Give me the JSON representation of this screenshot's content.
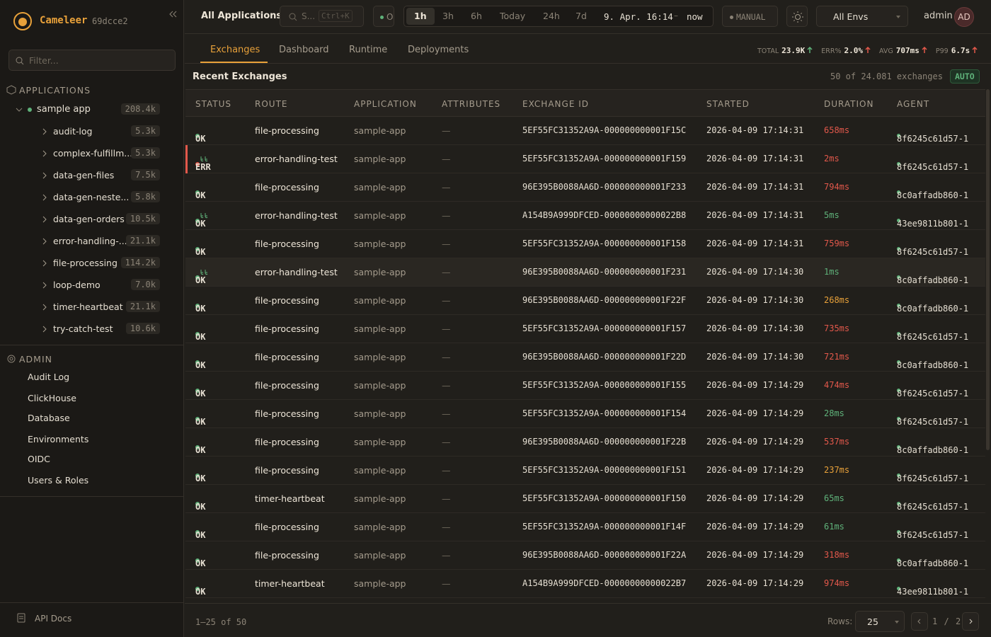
{
  "sidebar": {
    "brand": "Cameleer",
    "version": "69dcce2",
    "filter_placeholder": "Filter...",
    "applications_heading": "APPLICATIONS",
    "app": {
      "name": "sample app",
      "count": "208.4k"
    },
    "routes": [
      {
        "name": "audit-log",
        "count": "5.3k"
      },
      {
        "name": "complex-fulfillm...",
        "count": "5.3k"
      },
      {
        "name": "data-gen-files",
        "count": "7.5k"
      },
      {
        "name": "data-gen-neste...",
        "count": "5.8k"
      },
      {
        "name": "data-gen-orders",
        "count": "10.5k"
      },
      {
        "name": "error-handling-...",
        "count": "21.1k"
      },
      {
        "name": "file-processing",
        "count": "114.2k"
      },
      {
        "name": "loop-demo",
        "count": "7.0k"
      },
      {
        "name": "timer-heartbeat",
        "count": "21.1k"
      },
      {
        "name": "try-catch-test",
        "count": "10.6k"
      }
    ],
    "admin_heading": "ADMIN",
    "admin_items": [
      "Audit Log",
      "ClickHouse",
      "Database",
      "Environments",
      "OIDC",
      "Users & Roles"
    ],
    "api_docs": "API Docs"
  },
  "topbar": {
    "title": "All Applications",
    "search": "S...",
    "shortcut": "Ctrl+K",
    "status": "O",
    "ranges": [
      "1h",
      "3h",
      "6h",
      "Today",
      "24h",
      "7d"
    ],
    "range_start": "9. Apr. 16:14",
    "range_sep": "–",
    "range_end": "now",
    "manual": "MANUAL",
    "env": "All Envs",
    "user": "admin",
    "avatar": "AD"
  },
  "tabs": [
    "Exchanges",
    "Dashboard",
    "Runtime",
    "Deployments"
  ],
  "stats": [
    {
      "label": "TOTAL",
      "value": "23.9K",
      "color": "#5fb27a"
    },
    {
      "label": "ERR%",
      "value": "2.0%",
      "color": "#e2584b"
    },
    {
      "label": "AVG",
      "value": "707ms",
      "color": "#e2584b"
    },
    {
      "label": "P99",
      "value": "6.7s",
      "color": "#e2584b"
    }
  ],
  "table": {
    "title": "Recent Exchanges",
    "count_text": "50 of 24.081 exchanges",
    "auto": "AUTO",
    "columns": [
      "STATUS",
      "ROUTE",
      "APPLICATION",
      "ATTRIBUTES",
      "EXCHANGE ID",
      "STARTED",
      "DURATION",
      "AGENT"
    ],
    "rows": [
      {
        "status": "OK",
        "route": "file-processing",
        "app": "sample-app",
        "attrs": "—",
        "id": "5EF55FC31352A9A-000000000001F15C",
        "started": "2026-04-09 17:14:31",
        "duration": "658ms",
        "agent": "8f6245c61d57-1"
      },
      {
        "status": "ERR",
        "replay": true,
        "route": "error-handling-test",
        "app": "sample-app",
        "attrs": "—",
        "id": "5EF55FC31352A9A-000000000001F159",
        "started": "2026-04-09 17:14:31",
        "duration": "2ms",
        "agent": "8f6245c61d57-1"
      },
      {
        "status": "OK",
        "route": "file-processing",
        "app": "sample-app",
        "attrs": "—",
        "id": "96E395B0088AA6D-000000000001F233",
        "started": "2026-04-09 17:14:31",
        "duration": "794ms",
        "agent": "8c0affadb860-1"
      },
      {
        "status": "OK",
        "replay": true,
        "route": "error-handling-test",
        "app": "sample-app",
        "attrs": "—",
        "id": "A154B9A999DFCED-00000000000022B8",
        "started": "2026-04-09 17:14:31",
        "duration": "5ms",
        "agent": "43ee9811b801-1"
      },
      {
        "status": "OK",
        "route": "file-processing",
        "app": "sample-app",
        "attrs": "—",
        "id": "5EF55FC31352A9A-000000000001F158",
        "started": "2026-04-09 17:14:31",
        "duration": "759ms",
        "agent": "8f6245c61d57-1"
      },
      {
        "status": "OK",
        "replay": true,
        "route": "error-handling-test",
        "app": "sample-app",
        "attrs": "—",
        "id": "96E395B0088AA6D-000000000001F231",
        "started": "2026-04-09 17:14:30",
        "duration": "1ms",
        "agent": "8c0affadb860-1"
      },
      {
        "status": "OK",
        "route": "file-processing",
        "app": "sample-app",
        "attrs": "—",
        "id": "96E395B0088AA6D-000000000001F22F",
        "started": "2026-04-09 17:14:30",
        "duration": "268ms",
        "agent": "8c0affadb860-1"
      },
      {
        "status": "OK",
        "route": "file-processing",
        "app": "sample-app",
        "attrs": "—",
        "id": "5EF55FC31352A9A-000000000001F157",
        "started": "2026-04-09 17:14:30",
        "duration": "735ms",
        "agent": "8f6245c61d57-1"
      },
      {
        "status": "OK",
        "route": "file-processing",
        "app": "sample-app",
        "attrs": "—",
        "id": "96E395B0088AA6D-000000000001F22D",
        "started": "2026-04-09 17:14:30",
        "duration": "721ms",
        "agent": "8c0affadb860-1"
      },
      {
        "status": "OK",
        "route": "file-processing",
        "app": "sample-app",
        "attrs": "—",
        "id": "5EF55FC31352A9A-000000000001F155",
        "started": "2026-04-09 17:14:29",
        "duration": "474ms",
        "agent": "8f6245c61d57-1"
      },
      {
        "status": "OK",
        "route": "file-processing",
        "app": "sample-app",
        "attrs": "—",
        "id": "5EF55FC31352A9A-000000000001F154",
        "started": "2026-04-09 17:14:29",
        "duration": "28ms",
        "agent": "8f6245c61d57-1"
      },
      {
        "status": "OK",
        "route": "file-processing",
        "app": "sample-app",
        "attrs": "—",
        "id": "96E395B0088AA6D-000000000001F22B",
        "started": "2026-04-09 17:14:29",
        "duration": "537ms",
        "agent": "8c0affadb860-1"
      },
      {
        "status": "OK",
        "route": "file-processing",
        "app": "sample-app",
        "attrs": "—",
        "id": "5EF55FC31352A9A-000000000001F151",
        "started": "2026-04-09 17:14:29",
        "duration": "237ms",
        "agent": "8f6245c61d57-1"
      },
      {
        "status": "OK",
        "route": "timer-heartbeat",
        "app": "sample-app",
        "attrs": "—",
        "id": "5EF55FC31352A9A-000000000001F150",
        "started": "2026-04-09 17:14:29",
        "duration": "65ms",
        "agent": "8f6245c61d57-1"
      },
      {
        "status": "OK",
        "route": "file-processing",
        "app": "sample-app",
        "attrs": "—",
        "id": "5EF55FC31352A9A-000000000001F14F",
        "started": "2026-04-09 17:14:29",
        "duration": "61ms",
        "agent": "8f6245c61d57-1"
      },
      {
        "status": "OK",
        "route": "file-processing",
        "app": "sample-app",
        "attrs": "—",
        "id": "96E395B0088AA6D-000000000001F22A",
        "started": "2026-04-09 17:14:29",
        "duration": "318ms",
        "agent": "8c0affadb860-1"
      },
      {
        "status": "OK",
        "route": "timer-heartbeat",
        "app": "sample-app",
        "attrs": "—",
        "id": "A154B9A999DFCED-00000000000022B7",
        "started": "2026-04-09 17:14:29",
        "duration": "974ms",
        "agent": "43ee9811b801-1"
      }
    ]
  },
  "footer": {
    "range": "1–25 of 50",
    "rows_label": "Rows:",
    "rows_value": "25",
    "page": "1",
    "page_sep": "/",
    "pages": "2"
  }
}
